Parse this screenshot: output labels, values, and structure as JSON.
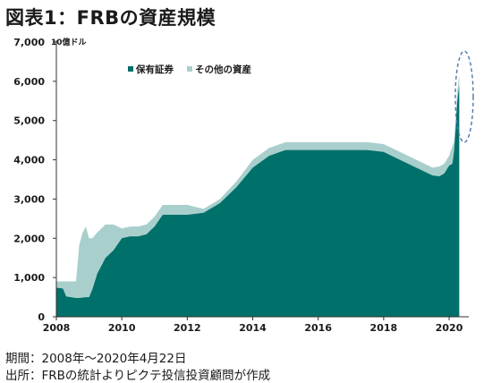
{
  "title": "図表1：FRBの資産規模",
  "footer": {
    "period": "期間：2008年～2020年4月22日",
    "source": "出所：FRBの統計よりピクテ投信投資顧問が作成"
  },
  "colors": {
    "securities": "#00706a",
    "other": "#a9cfcd",
    "annotation": "#4a78b0"
  },
  "chart_data": {
    "type": "area",
    "stacked": true,
    "unit_label": "10億ドル",
    "xlim": [
      2008,
      2020.6
    ],
    "ylim": [
      0,
      7000
    ],
    "x_ticks": [
      2008,
      2010,
      2012,
      2014,
      2016,
      2018,
      2020
    ],
    "y_ticks": [
      0,
      1000,
      2000,
      3000,
      4000,
      5000,
      6000,
      7000
    ],
    "y_tick_labels": [
      "0",
      "1,000",
      "2,000",
      "3,000",
      "4,000",
      "5,000",
      "6,000",
      "7,000"
    ],
    "legend_position": "top-center",
    "x": [
      2008.0,
      2008.2,
      2008.3,
      2008.6,
      2008.7,
      2008.8,
      2008.9,
      2009.0,
      2009.1,
      2009.25,
      2009.5,
      2009.75,
      2010.0,
      2010.25,
      2010.5,
      2010.75,
      2011.0,
      2011.25,
      2011.5,
      2011.75,
      2012.0,
      2012.5,
      2013.0,
      2013.5,
      2014.0,
      2014.5,
      2015.0,
      2016.0,
      2017.0,
      2017.5,
      2018.0,
      2018.5,
      2019.0,
      2019.5,
      2019.7,
      2019.85,
      2020.0,
      2020.1,
      2020.15,
      2020.2,
      2020.25,
      2020.31
    ],
    "series": [
      {
        "name": "保有証券",
        "values": [
          740,
          720,
          520,
          480,
          480,
          490,
          500,
          500,
          700,
          1100,
          1500,
          1700,
          2000,
          2050,
          2050,
          2100,
          2300,
          2600,
          2600,
          2600,
          2600,
          2650,
          2900,
          3300,
          3800,
          4100,
          4250,
          4250,
          4250,
          4250,
          4200,
          4000,
          3800,
          3600,
          3580,
          3650,
          3850,
          3900,
          4200,
          4800,
          5500,
          5900
        ]
      },
      {
        "name": "その他の資産",
        "values": [
          160,
          180,
          380,
          420,
          1350,
          1650,
          1800,
          1500,
          1300,
          1050,
          850,
          650,
          250,
          250,
          250,
          250,
          250,
          250,
          250,
          250,
          250,
          100,
          100,
          150,
          200,
          200,
          200,
          200,
          200,
          200,
          200,
          200,
          200,
          200,
          250,
          250,
          250,
          450,
          250,
          250,
          250,
          250
        ]
      }
    ]
  }
}
